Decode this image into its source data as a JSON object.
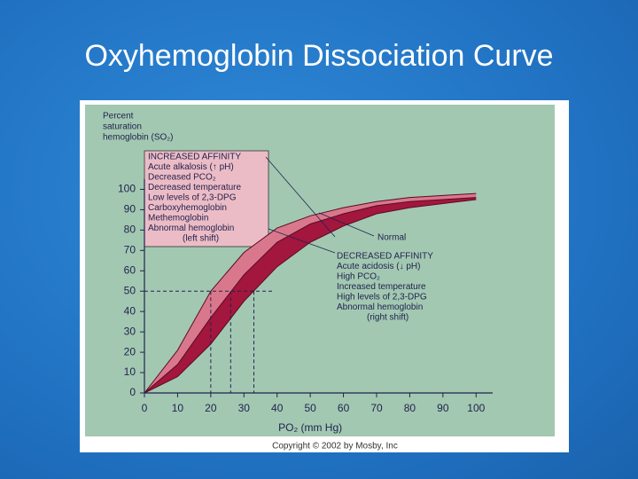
{
  "slide_title": "Oxyhemoglobin Dissociation Curve",
  "chart_data": {
    "type": "line",
    "ylabel": [
      "Percent",
      "saturation",
      "hemoglobin (SO₂)"
    ],
    "xlabel": "PO₂ (mm Hg)",
    "x": [
      0,
      10,
      20,
      30,
      40,
      50,
      60,
      70,
      80,
      90,
      100
    ],
    "series": [
      {
        "name": "left shift",
        "color": "#d9788c",
        "values": [
          0,
          21,
          50,
          69,
          81,
          87,
          91,
          94,
          96,
          97,
          98
        ]
      },
      {
        "name": "Normal",
        "color": "#a3163e",
        "values": [
          0,
          14,
          37,
          58,
          74,
          83,
          88,
          92,
          94,
          95,
          96
        ]
      },
      {
        "name": "right shift",
        "color": "#a3163e",
        "values": [
          0,
          8,
          24,
          45,
          62,
          74,
          82,
          88,
          91,
          93,
          95
        ]
      }
    ],
    "xlim": [
      0,
      105
    ],
    "ylim": [
      0,
      105
    ],
    "xticks": [
      0,
      10,
      20,
      30,
      40,
      50,
      60,
      70,
      80,
      90,
      100
    ],
    "yticks": [
      0,
      10,
      20,
      30,
      40,
      50,
      60,
      70,
      80,
      90,
      100
    ],
    "reference_lines": {
      "y": 50,
      "x": [
        20,
        26,
        33
      ]
    },
    "annotations": [
      {
        "lines": [
          "INCREASED AFFINITY",
          "Acute alkalosis (↑ pH)",
          "Decreased PCO₂",
          "Decreased temperature",
          "Low levels of 2,3-DPG",
          "Carboxyhemoglobin",
          "Methemoglobin",
          "Abnormal hemoglobin",
          "(left shift)"
        ]
      },
      {
        "lines": [
          "DECREASED AFFINITY",
          "Acute acidosis (↓ pH)",
          "High PCO₂",
          "Increased temperature",
          "High levels of 2,3-DPG",
          "Abnormal hemoglobin",
          "(right shift)"
        ]
      }
    ],
    "normal_label": "Normal",
    "copyright": "Copyright © 2002 by Mosby, Inc"
  }
}
